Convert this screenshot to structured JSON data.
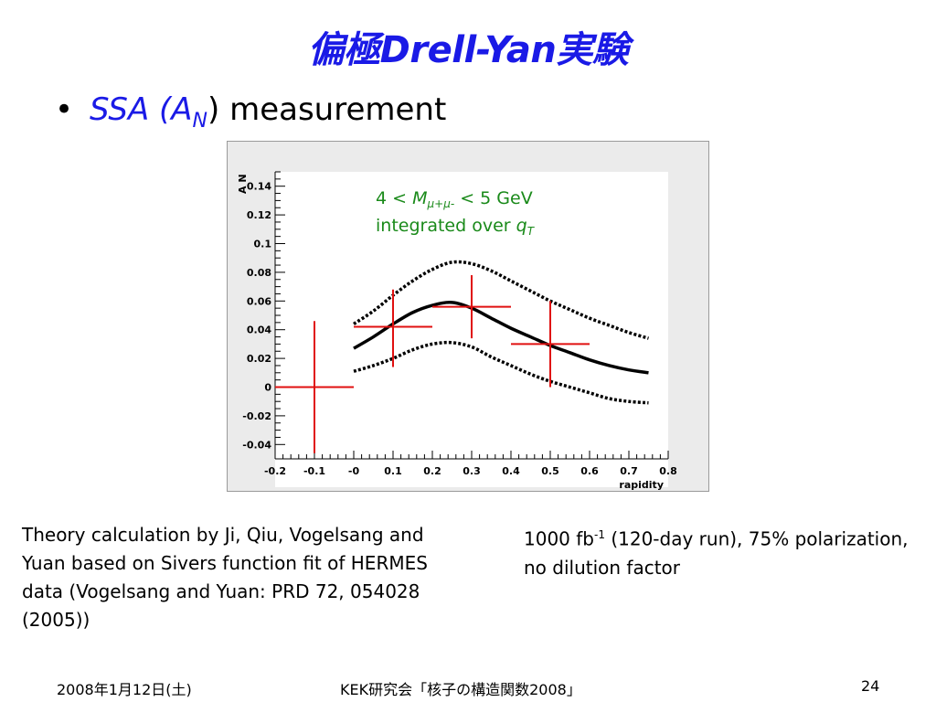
{
  "slide": {
    "title": "偏極Drell-Yan実験",
    "bullet": {
      "symbol": "•",
      "prefix": "SSA (A",
      "subscript": "N",
      "suffix_paren": ")",
      "suffix": " measurement"
    }
  },
  "plot": {
    "annotation": {
      "line1_prefix": "4 < ",
      "line1_var": "M",
      "line1_sub": "μ+μ-",
      "line1_suffix": " < 5 GeV",
      "line2_prefix": "integrated over ",
      "line2_var": "q",
      "line2_sub": "T"
    }
  },
  "chart_data": {
    "type": "line",
    "xlabel": "rapidity",
    "ylabel": "A_N",
    "xlim": [
      -0.2,
      0.8
    ],
    "ylim": [
      -0.05,
      0.15
    ],
    "x_ticks": [
      "-0.2",
      "-0.1",
      "-0",
      "0.1",
      "0.2",
      "0.3",
      "0.4",
      "0.5",
      "0.6",
      "0.7",
      "0.8"
    ],
    "y_ticks": [
      "-0.04",
      "-0.02",
      "0",
      "0.02",
      "0.04",
      "0.06",
      "0.08",
      "0.1",
      "0.12",
      "0.14"
    ],
    "grid": false,
    "colors": {
      "curve": "#000000",
      "points": "#e01010",
      "annotation": "#1a8a1a"
    },
    "series": [
      {
        "style": "solid",
        "x": [
          0.0,
          0.05,
          0.1,
          0.15,
          0.2,
          0.25,
          0.3,
          0.35,
          0.4,
          0.45,
          0.5,
          0.55,
          0.6,
          0.65,
          0.7,
          0.75
        ],
        "y": [
          0.027,
          0.035,
          0.044,
          0.052,
          0.057,
          0.059,
          0.055,
          0.048,
          0.041,
          0.035,
          0.029,
          0.024,
          0.019,
          0.015,
          0.012,
          0.01
        ]
      },
      {
        "style": "dotted",
        "x": [
          0.0,
          0.05,
          0.1,
          0.15,
          0.2,
          0.25,
          0.3,
          0.35,
          0.4,
          0.45,
          0.5,
          0.55,
          0.6,
          0.65,
          0.7,
          0.75
        ],
        "y": [
          0.044,
          0.053,
          0.064,
          0.074,
          0.082,
          0.087,
          0.086,
          0.081,
          0.074,
          0.067,
          0.06,
          0.054,
          0.048,
          0.043,
          0.038,
          0.034
        ]
      },
      {
        "style": "dotted",
        "x": [
          0.0,
          0.05,
          0.1,
          0.15,
          0.2,
          0.25,
          0.3,
          0.35,
          0.4,
          0.45,
          0.5,
          0.55,
          0.6,
          0.65,
          0.7,
          0.75
        ],
        "y": [
          0.011,
          0.015,
          0.02,
          0.026,
          0.03,
          0.031,
          0.028,
          0.021,
          0.015,
          0.009,
          0.004,
          0.0,
          -0.004,
          -0.008,
          -0.01,
          -0.011
        ]
      },
      {
        "style": "errorbars",
        "points": [
          {
            "x": -0.1,
            "y": 0.0,
            "xerr": 0.1,
            "yerr_low": 0.046,
            "yerr_high": 0.046
          },
          {
            "x": 0.1,
            "y": 0.042,
            "xerr": 0.1,
            "yerr_low": 0.028,
            "yerr_high": 0.026
          },
          {
            "x": 0.3,
            "y": 0.056,
            "xerr": 0.1,
            "yerr_low": 0.022,
            "yerr_high": 0.022
          },
          {
            "x": 0.5,
            "y": 0.03,
            "xerr": 0.1,
            "yerr_low": 0.03,
            "yerr_high": 0.03
          }
        ]
      }
    ]
  },
  "captions": {
    "left": "Theory calculation by Ji, Qiu, Vogelsang and Yuan based on Sivers function fit of HERMES data (Vogelsang and Yuan: PRD 72, 054028 (2005))",
    "right_prefix": "1000 fb",
    "right_sup": "-1",
    "right_suffix": " (120-day run), 75% polarization, no dilution factor"
  },
  "footer": {
    "date": "2008年1月12日(土)",
    "event": "KEK研究会「核子の構造関数2008」",
    "page": "24"
  }
}
